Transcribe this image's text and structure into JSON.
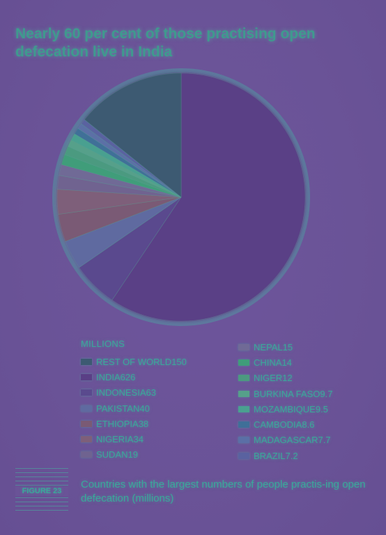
{
  "chart_data": {
    "type": "pie",
    "title": "Nearly 60 per cent of those practising open defecation live in India",
    "unit_label": "MILLIONS",
    "slices": [
      {
        "label": "REST OF WORLD",
        "value": 150,
        "value_text": "150",
        "color": "#3c5a72"
      },
      {
        "label": "INDIA",
        "value": 626,
        "value_text": "626",
        "color": "#5a3f86"
      },
      {
        "label": "INDONESIA",
        "value": 63,
        "value_text": "63",
        "color": "#5a4a8e"
      },
      {
        "label": "PAKISTAN",
        "value": 40,
        "value_text": "40",
        "color": "#5f6aa0"
      },
      {
        "label": "ETHIOPIA",
        "value": 38,
        "value_text": "38",
        "color": "#7a5a74"
      },
      {
        "label": "NIGERIA",
        "value": 34,
        "value_text": "34",
        "color": "#7e5f7a"
      },
      {
        "label": "SUDAN",
        "value": 19,
        "value_text": "19",
        "color": "#6f6390"
      },
      {
        "label": "NEPAL",
        "value": 15,
        "value_text": "15",
        "color": "#706a96"
      },
      {
        "label": "CHINA",
        "value": 14,
        "value_text": "14",
        "color": "#3f9d7a"
      },
      {
        "label": "NIGER",
        "value": 12,
        "value_text": "12",
        "color": "#4c9a80"
      },
      {
        "label": "BURKINA FASO",
        "value": 9.7,
        "value_text": "9.7",
        "color": "#56a08a"
      },
      {
        "label": "MOZAMBIQUE",
        "value": 9.5,
        "value_text": "9.5",
        "color": "#4aa090"
      },
      {
        "label": "CAMBODIA",
        "value": 8.6,
        "value_text": "8.6",
        "color": "#3f6f98"
      },
      {
        "label": "MADAGASCAR",
        "value": 7.7,
        "value_text": "7.7",
        "color": "#5b6fa6"
      },
      {
        "label": "BRAZIL",
        "value": 7.2,
        "value_text": "7.2",
        "color": "#5a62a0"
      }
    ]
  },
  "legend": {
    "left": [
      0,
      1,
      2,
      3,
      4,
      5,
      6
    ],
    "right": [
      7,
      8,
      9,
      10,
      11,
      12,
      13,
      14
    ]
  },
  "figure": {
    "label": "FIGURE 23",
    "caption": "Countries with the largest numbers of people practis-ing open defecation (millions)"
  }
}
